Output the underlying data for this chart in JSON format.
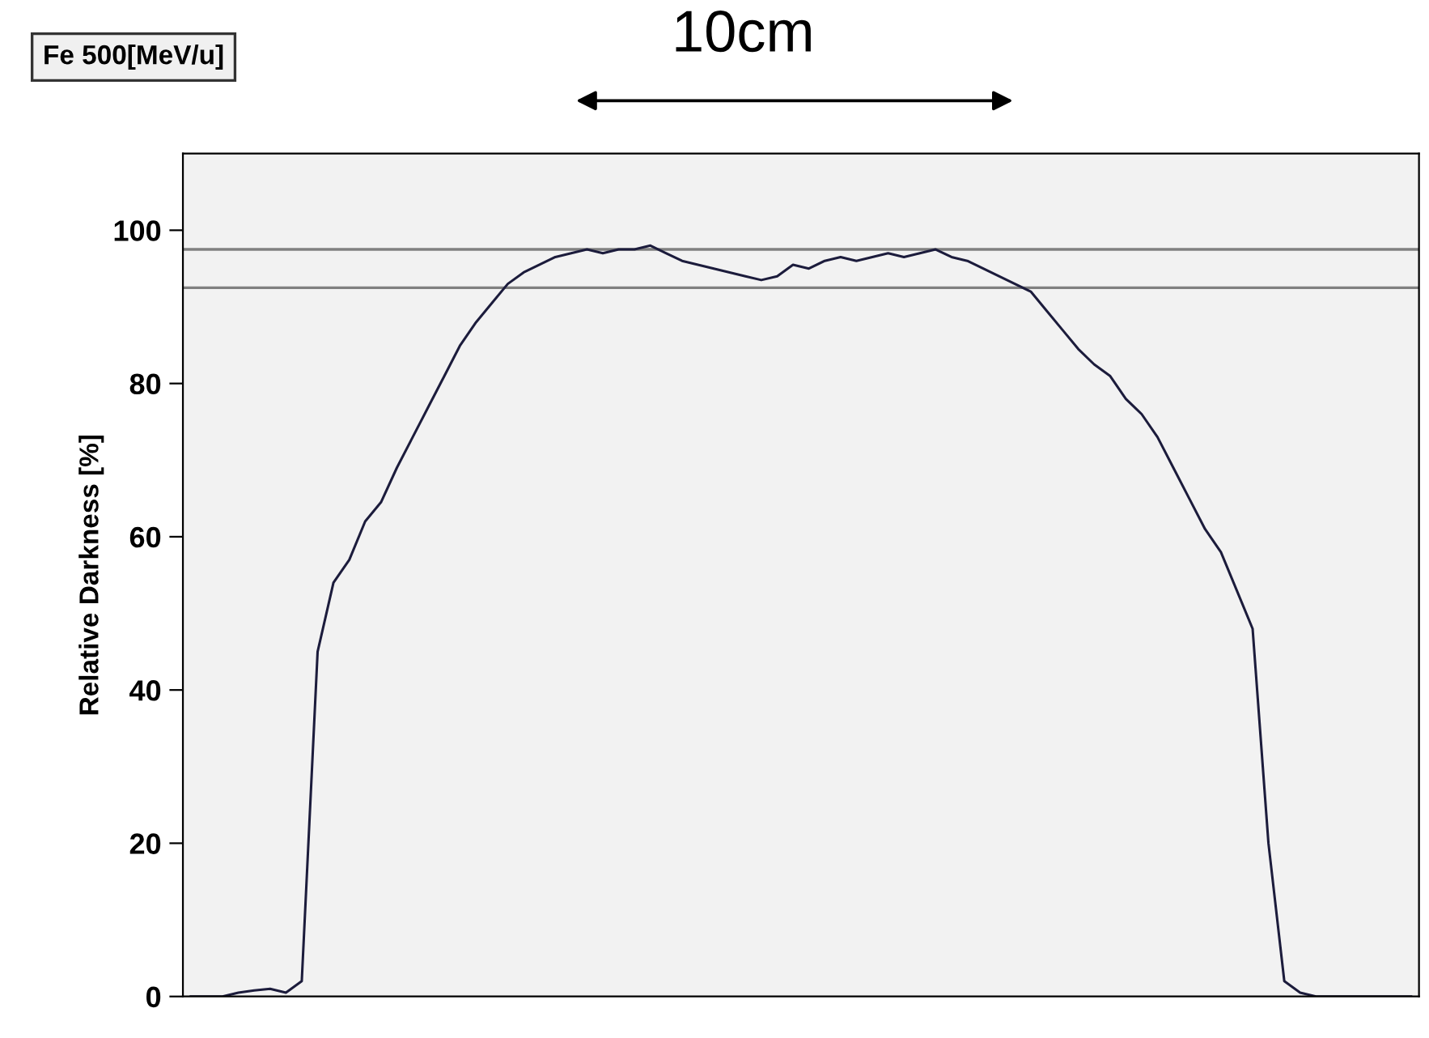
{
  "chart_data": {
    "type": "line",
    "title": "Fe 500[MeV/u]",
    "ylabel": "Relative Darkness [%]",
    "annotations": [
      "10cm"
    ],
    "categories": [
      null,
      null,
      null,
      null,
      null,
      null,
      null,
      null,
      null,
      null,
      null,
      null,
      null,
      null,
      null,
      null,
      null,
      null,
      null,
      null,
      null,
      null,
      null,
      null,
      null,
      null,
      null,
      null,
      null,
      null,
      null,
      null,
      null,
      null,
      null,
      null,
      null,
      null,
      null,
      null,
      null,
      null,
      null,
      null,
      null,
      null,
      null,
      null,
      null,
      null,
      null,
      null,
      null,
      null,
      null,
      null,
      null,
      null,
      null,
      null,
      null,
      null,
      null,
      null,
      null,
      null,
      null,
      null,
      null,
      null,
      null,
      null,
      null,
      null,
      null,
      null,
      null,
      null
    ],
    "series": [
      {
        "color": "#1c1c3c",
        "values": [
          0,
          0,
          0,
          0.5,
          0.8,
          1,
          0.5,
          2,
          45,
          54,
          57,
          62,
          64.5,
          69,
          73,
          77,
          81,
          85,
          88,
          90.5,
          93,
          94.5,
          95.5,
          96.5,
          97,
          97.5,
          97,
          97.5,
          97.5,
          98,
          97,
          96,
          95.5,
          95,
          94.5,
          94,
          93.5,
          94,
          95.5,
          95,
          96,
          96.5,
          96,
          96.5,
          97,
          96.5,
          97,
          97.5,
          96.5,
          96,
          95,
          94,
          93,
          92,
          89.5,
          87,
          84.5,
          82.5,
          81,
          78,
          76,
          73,
          69,
          65,
          61,
          58,
          53,
          48,
          20,
          2,
          0.5,
          0,
          0,
          0,
          0,
          0,
          0,
          0
        ]
      }
    ],
    "ylim": [
      0,
      110
    ],
    "yticks": [
      0,
      20,
      40,
      60,
      80,
      100
    ],
    "tick_labels": "y",
    "marker": "none",
    "line_style": "solid",
    "ref_lines": [
      {
        "axis": "y",
        "value": 97.5,
        "color": "#808080"
      },
      {
        "axis": "y",
        "value": 92.5,
        "color": "#808080"
      }
    ]
  }
}
